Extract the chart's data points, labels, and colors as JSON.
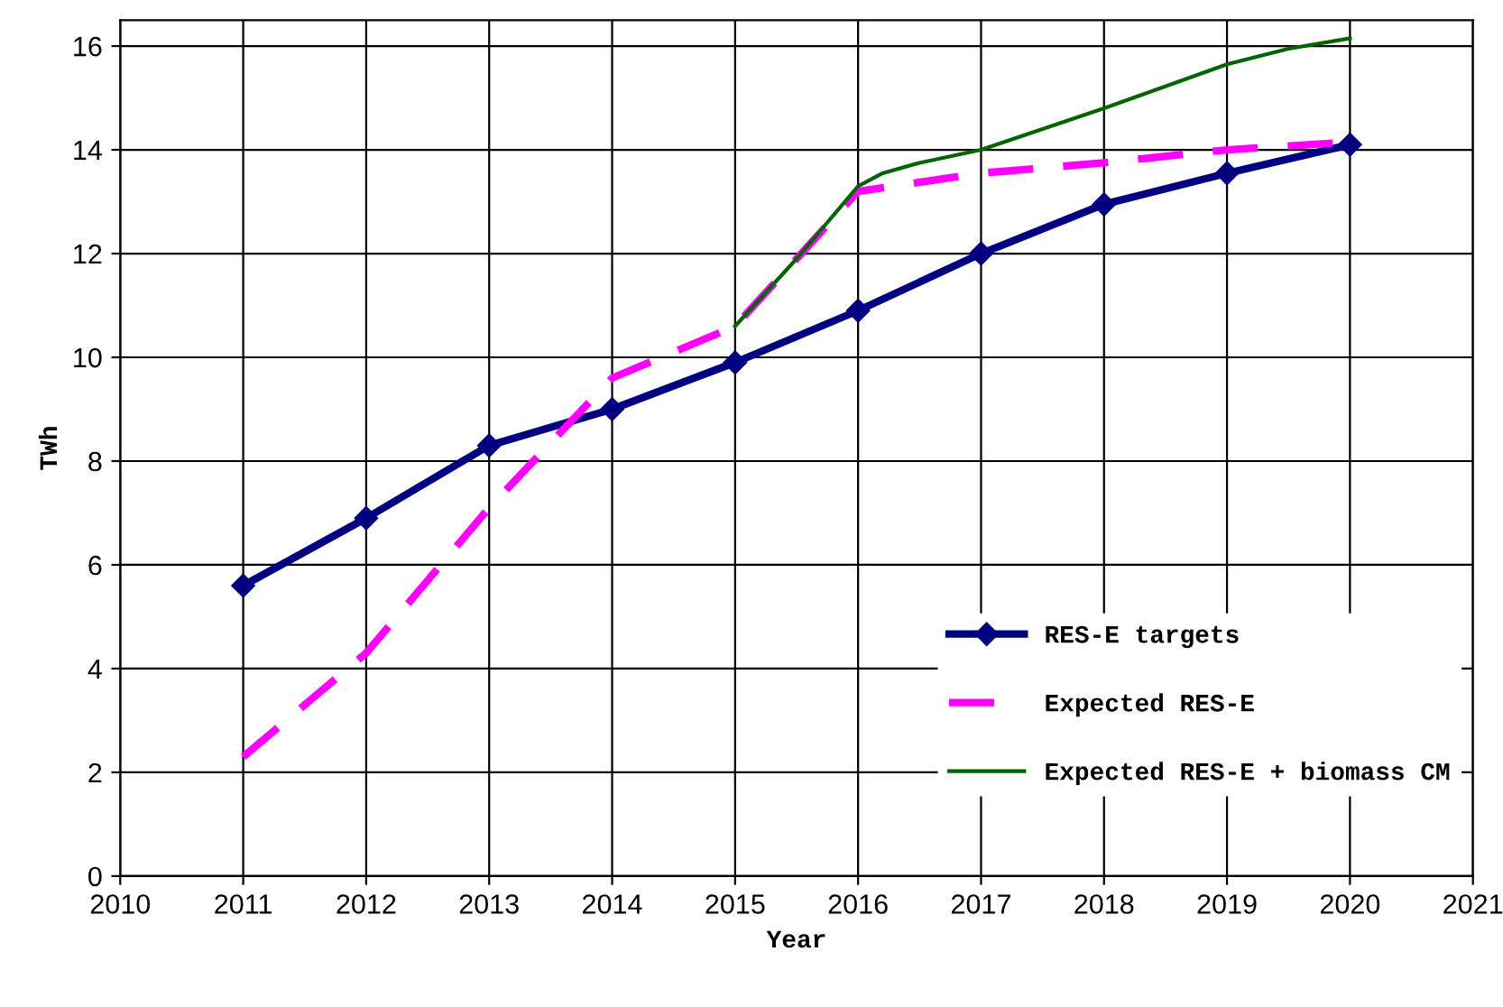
{
  "chart_data": {
    "type": "line",
    "xlabel": "Year",
    "ylabel": "TWh",
    "xlim": [
      2010,
      2021
    ],
    "xticks": [
      2010,
      2011,
      2012,
      2013,
      2014,
      2015,
      2016,
      2017,
      2018,
      2019,
      2020,
      2021
    ],
    "ylim": [
      0,
      16.5
    ],
    "yticks": [
      0,
      2,
      4,
      6,
      8,
      10,
      12,
      14,
      16
    ],
    "grid": true,
    "legend": "bottom right",
    "series": [
      {
        "name": "RES-E targets",
        "color": "#000080",
        "marker": "diamond",
        "line_style": "solid",
        "x": [
          2011,
          2012,
          2013,
          2014,
          2015,
          2016,
          2017,
          2018,
          2019,
          2020
        ],
        "values": [
          5.6,
          6.9,
          8.3,
          9.0,
          9.9,
          10.9,
          12.0,
          12.95,
          13.55,
          14.1
        ]
      },
      {
        "name": "Expected RES-E",
        "color": "#ff00ff",
        "marker": "none",
        "line_style": "dashed",
        "x": [
          2011,
          2012,
          2013,
          2014,
          2015,
          2016,
          2017,
          2018,
          2019,
          2020
        ],
        "values": [
          2.3,
          4.3,
          7.1,
          9.6,
          10.6,
          13.2,
          13.55,
          13.75,
          14.0,
          14.15
        ]
      },
      {
        "name": "Expected RES-E + biomass CM",
        "color": "#006400",
        "marker": "none",
        "line_style": "solid",
        "x": [
          2015,
          2015.5,
          2016,
          2016.2,
          2016.5,
          2017,
          2018,
          2019,
          2019.5,
          2020
        ],
        "values": [
          10.6,
          11.9,
          13.3,
          13.55,
          13.75,
          14.0,
          14.8,
          15.65,
          15.95,
          16.15
        ]
      }
    ]
  }
}
